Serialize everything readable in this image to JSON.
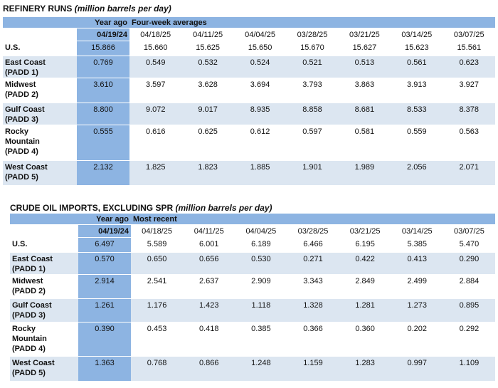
{
  "refinery": {
    "title": "REFINERY RUNS",
    "subtitle": "(million barrels per day)",
    "year_ago_label": "Year ago",
    "group_label": "Four-week averages",
    "dates": [
      "04/19/24",
      "04/18/25",
      "04/11/25",
      "04/04/25",
      "03/28/25",
      "03/21/25",
      "03/14/25",
      "03/07/25"
    ],
    "rows": [
      {
        "label": [
          "U.S."
        ],
        "values": [
          "15.866",
          "15.660",
          "15.625",
          "15.650",
          "15.670",
          "15.627",
          "15.623",
          "15.561"
        ]
      },
      {
        "label": [
          "East Coast",
          "(PADD 1)"
        ],
        "values": [
          "0.769",
          "0.549",
          "0.532",
          "0.524",
          "0.521",
          "0.513",
          "0.561",
          "0.623"
        ]
      },
      {
        "label": [
          "Midwest",
          "(PADD 2)"
        ],
        "values": [
          "3.610",
          "3.597",
          "3.628",
          "3.694",
          "3.793",
          "3.863",
          "3.913",
          "3.927"
        ]
      },
      {
        "label": [
          "Gulf Coast",
          "(PADD 3)"
        ],
        "values": [
          "8.800",
          "9.072",
          "9.017",
          "8.935",
          "8.858",
          "8.681",
          "8.533",
          "8.378"
        ]
      },
      {
        "label": [
          "Rocky",
          "Mountain",
          "(PADD 4)"
        ],
        "values": [
          "0.555",
          "0.616",
          "0.625",
          "0.612",
          "0.597",
          "0.581",
          "0.559",
          "0.563"
        ]
      },
      {
        "label": [
          "West Coast",
          "(PADD 5)"
        ],
        "values": [
          "2.132",
          "1.825",
          "1.823",
          "1.885",
          "1.901",
          "1.989",
          "2.056",
          "2.071"
        ]
      }
    ]
  },
  "imports": {
    "title": "CRUDE OIL IMPORTS, EXCLUDING SPR",
    "subtitle": "(million barrels per day)",
    "year_ago_label": "Year ago",
    "group_label": "Most recent",
    "dates": [
      "04/19/24",
      "04/18/25",
      "04/11/25",
      "04/04/25",
      "03/28/25",
      "03/21/25",
      "03/14/25",
      "03/07/25"
    ],
    "rows": [
      {
        "label": [
          "U.S."
        ],
        "values": [
          "6.497",
          "5.589",
          "6.001",
          "6.189",
          "6.466",
          "6.195",
          "5.385",
          "5.470"
        ]
      },
      {
        "label": [
          "East Coast",
          "(PADD 1)"
        ],
        "values": [
          "0.570",
          "0.650",
          "0.656",
          "0.530",
          "0.271",
          "0.422",
          "0.413",
          "0.290"
        ]
      },
      {
        "label": [
          "Midwest",
          "(PADD 2)"
        ],
        "values": [
          "2.914",
          "2.541",
          "2.637",
          "2.909",
          "3.343",
          "2.849",
          "2.499",
          "2.884"
        ]
      },
      {
        "label": [
          "Gulf Coast",
          "(PADD 3)"
        ],
        "values": [
          "1.261",
          "1.176",
          "1.423",
          "1.118",
          "1.328",
          "1.281",
          "1.273",
          "0.895"
        ]
      },
      {
        "label": [
          "Rocky",
          "Mountain",
          "(PADD 4)"
        ],
        "values": [
          "0.390",
          "0.453",
          "0.418",
          "0.385",
          "0.366",
          "0.360",
          "0.202",
          "0.292"
        ]
      },
      {
        "label": [
          "West Coast",
          "(PADD 5)"
        ],
        "values": [
          "1.363",
          "0.768",
          "0.866",
          "1.248",
          "1.159",
          "1.283",
          "0.997",
          "1.109"
        ]
      }
    ]
  }
}
